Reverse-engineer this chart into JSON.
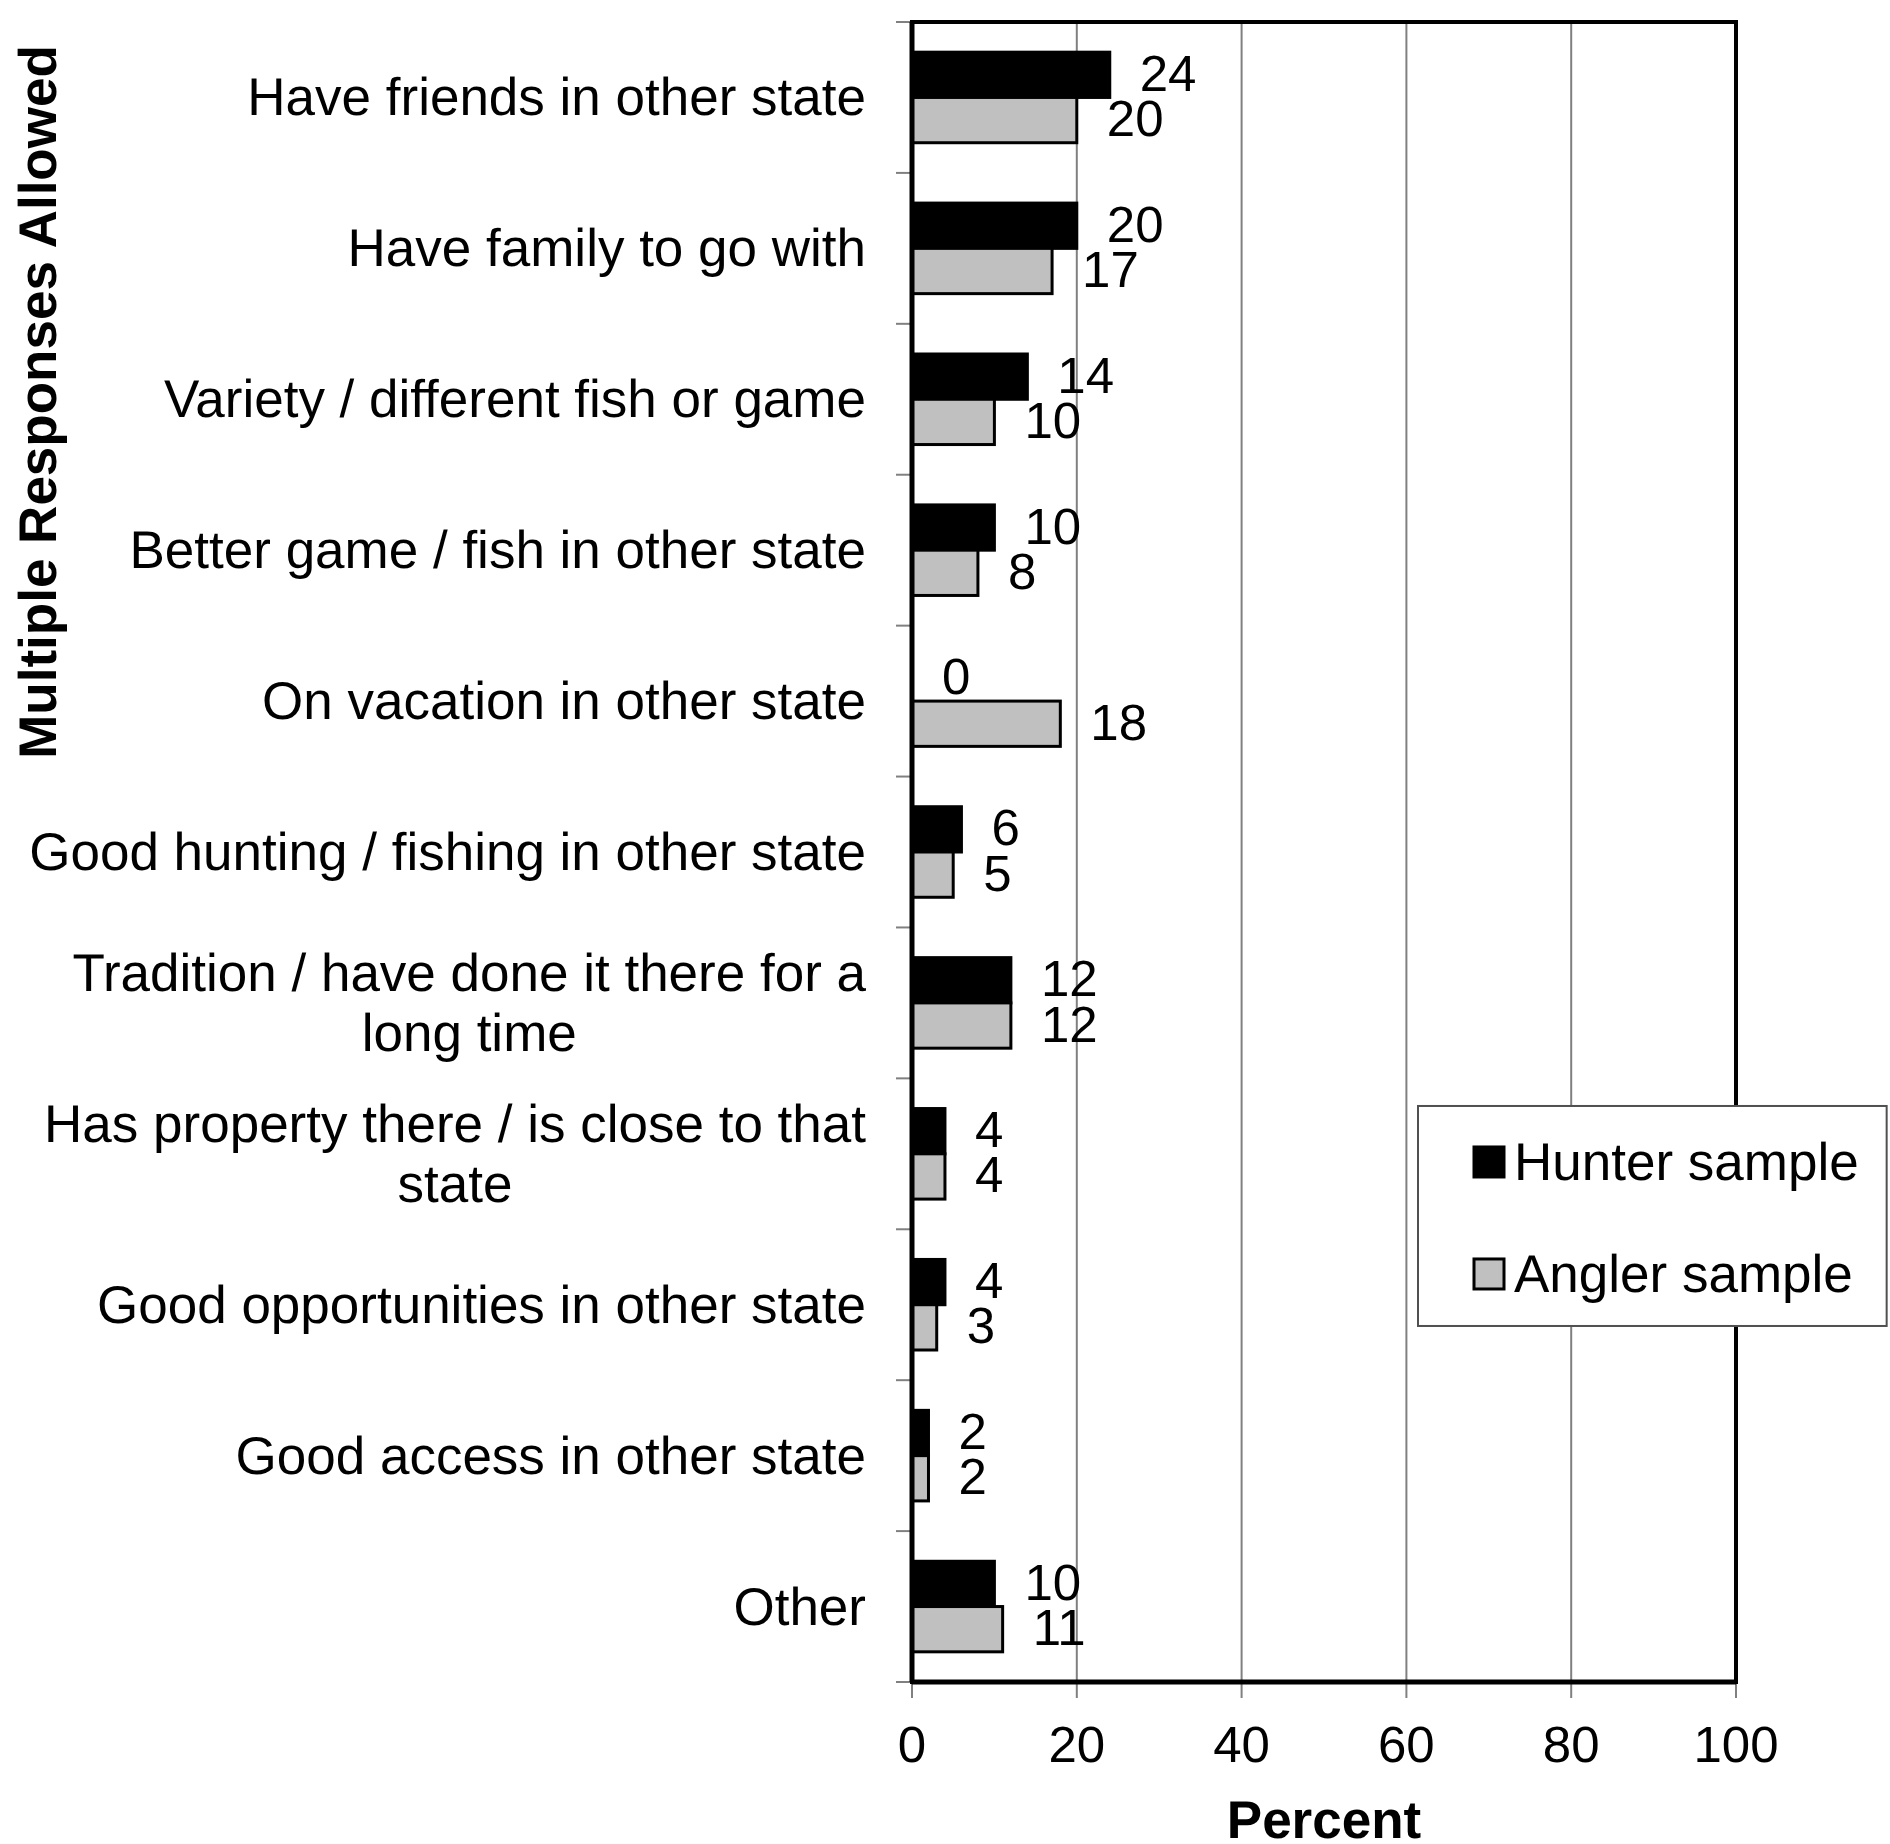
{
  "chart_data": {
    "type": "bar",
    "orientation": "horizontal",
    "xlabel": "Percent",
    "ylabel": "Multiple Responses Allowed",
    "categories": [
      "Have friends in other state",
      "Have family to go with",
      "Variety / different fish or game",
      "Better game / fish in other state",
      "On vacation in other state",
      "Good hunting / fishing in other state",
      "Tradition / have done it there for a long time",
      "Has property there / is close to that state",
      "Good opportunities in other state",
      "Good access in other state",
      "Other"
    ],
    "series": [
      {
        "name": "Hunter sample",
        "color": "#000000",
        "values": [
          24,
          20,
          14,
          10,
          0,
          6,
          12,
          4,
          4,
          2,
          10
        ]
      },
      {
        "name": "Angler sample",
        "color": "#c0c0c0",
        "values": [
          20,
          17,
          10,
          8,
          18,
          5,
          12,
          4,
          3,
          2,
          11
        ]
      }
    ],
    "xlim": [
      0,
      100
    ],
    "xticks": [
      0,
      20,
      40,
      60,
      80,
      100
    ],
    "grid": "x",
    "legend": "right",
    "data_labels": true
  }
}
